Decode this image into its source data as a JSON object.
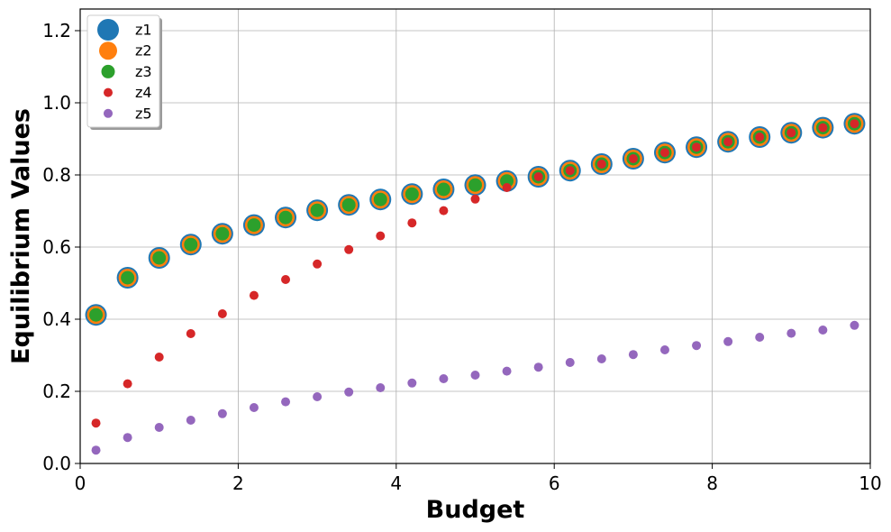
{
  "chart_data": {
    "type": "scatter",
    "title": "",
    "xlabel": "Budget",
    "ylabel": "Equilibrium Values",
    "xlim": [
      0,
      10
    ],
    "ylim": [
      0,
      1.26
    ],
    "xticks": [
      0,
      2,
      4,
      6,
      8,
      10
    ],
    "yticks": [
      0.0,
      0.2,
      0.4,
      0.6,
      0.8,
      1.0,
      1.2
    ],
    "grid": true,
    "legend_position": "top-left",
    "x": [
      0.2,
      0.6,
      1.0,
      1.4,
      1.8,
      2.2,
      2.6,
      3.0,
      3.4,
      3.8,
      4.2,
      4.6,
      5.0,
      5.4,
      5.8,
      6.2,
      6.6,
      7.0,
      7.4,
      7.8,
      8.2,
      8.6,
      9.0,
      9.4,
      9.8
    ],
    "series": [
      {
        "name": "z1",
        "color": "#1f77b4",
        "marker_size": "largest",
        "values": [
          0.412,
          0.515,
          0.57,
          0.607,
          0.637,
          0.661,
          0.682,
          0.702,
          0.717,
          0.732,
          0.747,
          0.76,
          0.772,
          0.783,
          0.795,
          0.812,
          0.83,
          0.845,
          0.862,
          0.877,
          0.892,
          0.905,
          0.917,
          0.931,
          0.942
        ]
      },
      {
        "name": "z2",
        "color": "#ff7f0e",
        "marker_size": "large",
        "values": [
          0.412,
          0.515,
          0.57,
          0.607,
          0.637,
          0.661,
          0.682,
          0.702,
          0.717,
          0.732,
          0.747,
          0.76,
          0.772,
          0.783,
          0.795,
          0.812,
          0.83,
          0.845,
          0.862,
          0.877,
          0.892,
          0.905,
          0.917,
          0.931,
          0.942
        ]
      },
      {
        "name": "z3",
        "color": "#2ca02c",
        "marker_size": "medium",
        "values": [
          0.412,
          0.515,
          0.57,
          0.607,
          0.637,
          0.661,
          0.682,
          0.702,
          0.717,
          0.732,
          0.747,
          0.76,
          0.772,
          0.783,
          0.795,
          0.812,
          0.83,
          0.845,
          0.862,
          0.877,
          0.892,
          0.905,
          0.917,
          0.931,
          0.942
        ]
      },
      {
        "name": "z4",
        "color": "#d62728",
        "marker_size": "small",
        "values": [
          0.112,
          0.221,
          0.295,
          0.36,
          0.415,
          0.466,
          0.51,
          0.553,
          0.593,
          0.631,
          0.667,
          0.701,
          0.733,
          0.765,
          0.795,
          0.812,
          0.83,
          0.845,
          0.862,
          0.877,
          0.892,
          0.905,
          0.917,
          0.931,
          0.942
        ]
      },
      {
        "name": "z5",
        "color": "#9467bd",
        "marker_size": "small",
        "values": [
          0.037,
          0.072,
          0.1,
          0.12,
          0.138,
          0.155,
          0.171,
          0.185,
          0.198,
          0.21,
          0.223,
          0.235,
          0.245,
          0.256,
          0.267,
          0.28,
          0.29,
          0.302,
          0.315,
          0.327,
          0.338,
          0.35,
          0.361,
          0.37,
          0.383
        ]
      }
    ]
  }
}
